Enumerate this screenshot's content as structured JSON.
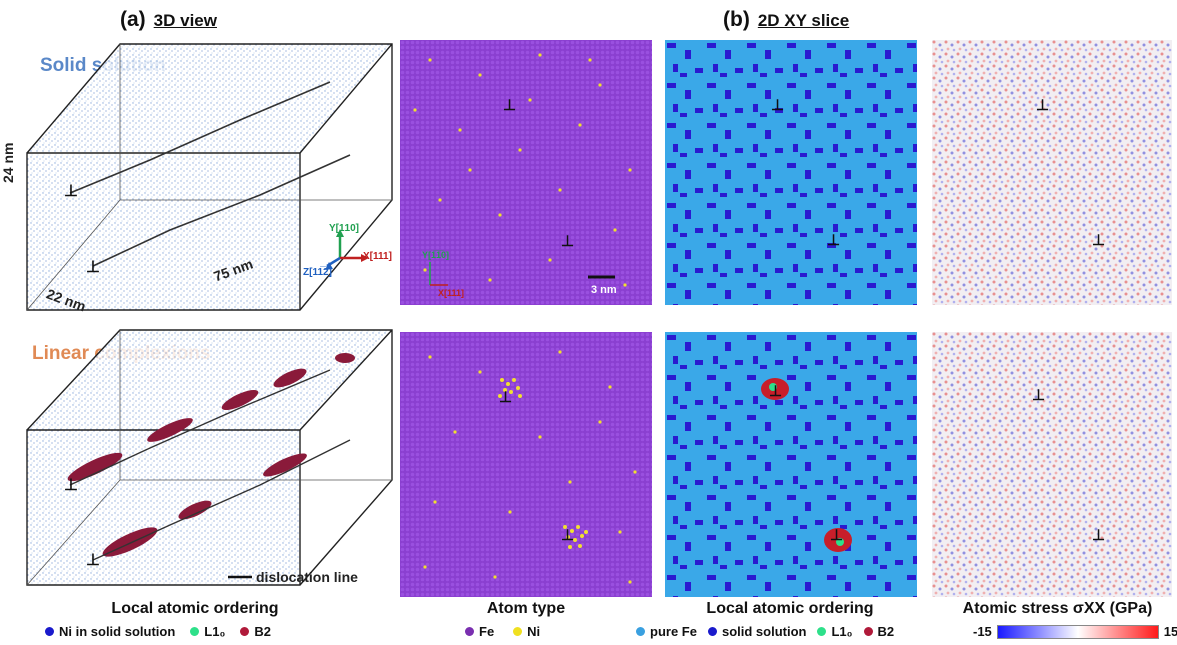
{
  "panel_a": {
    "letter": "(a)",
    "title": "3D view"
  },
  "panel_b": {
    "letter": "(b)",
    "title": "2D XY slice"
  },
  "row_labels": {
    "top": "Solid solution",
    "bottom": "Linear complexions"
  },
  "dimensions": {
    "height": "24 nm",
    "depth": "22 nm",
    "length": "75 nm"
  },
  "axes_3d": {
    "y": "Y[1̅1̅0]",
    "x": "X[111]",
    "z": "Z[11̅2̅]"
  },
  "axes_2d": {
    "y": "Y[1̅1̅0]",
    "x": "X[111]"
  },
  "scale_bar": "3 nm",
  "dislocation_line_label": "dislocation line",
  "captions": {
    "local_ordering_3d": "Local atomic ordering",
    "atom_type": "Atom type",
    "local_ordering_2d": "Local atomic ordering",
    "atomic_stress": "Atomic stress σXX (GPa)"
  },
  "legend_3d": [
    {
      "label": "Ni in solid solution",
      "color": "#1a1acc"
    },
    {
      "label": "L1₀",
      "color": "#2ee08a"
    },
    {
      "label": "B2",
      "color": "#b01a3a"
    }
  ],
  "legend_atom_type": [
    {
      "label": "Fe",
      "color": "#7a2fb0"
    },
    {
      "label": "Ni",
      "color": "#f0e020"
    }
  ],
  "legend_2d": [
    {
      "label": "pure Fe",
      "color": "#3aa0e0"
    },
    {
      "label": "solid solution",
      "color": "#1a1acc"
    },
    {
      "label": "L1₀",
      "color": "#2ee08a"
    },
    {
      "label": "B2",
      "color": "#b01a3a"
    }
  ],
  "colorbar": {
    "min": "-15",
    "max": "15"
  },
  "colors": {
    "fe_purple": "#8a3fd0",
    "ni_yellow": "#f2e030",
    "pure_fe_blue": "#3aa8e8",
    "solid_solution": "#2a1ad0",
    "b2": "#c81e2a",
    "l10": "#2ee08a",
    "stress_bg": "#f2eef2"
  }
}
